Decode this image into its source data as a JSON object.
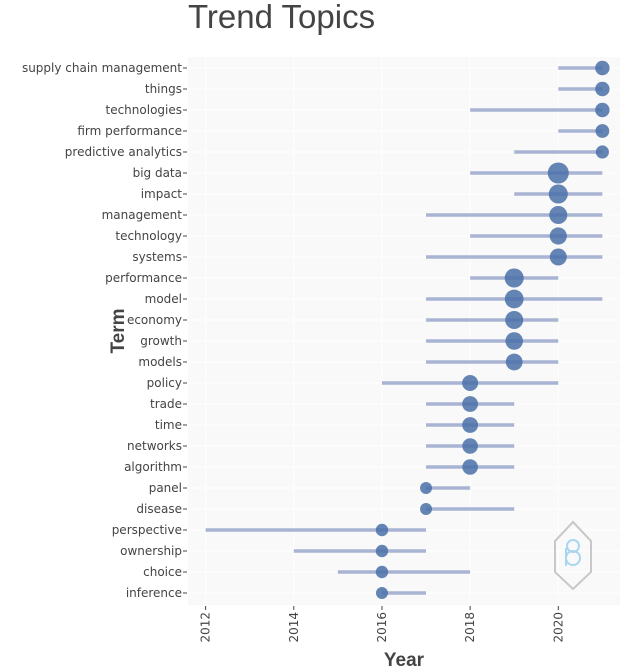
{
  "chart_data": {
    "type": "scatter",
    "title": "Trend Topics",
    "xlabel": "Year",
    "ylabel": "Term",
    "xlim": [
      2011.6,
      2021.4
    ],
    "xticks": [
      2012,
      2014,
      2016,
      2018,
      2020
    ],
    "grid": true,
    "legend": "none",
    "colors": {
      "point": "#4a70a8",
      "range": "#a9b4d4",
      "plot_bg": "#f9f9f9",
      "grid": "#ffffff",
      "text": "#444444"
    },
    "terms": [
      {
        "term": "supply chain management",
        "start": 2020,
        "end": 2021,
        "median": 2021,
        "size": 1
      },
      {
        "term": "things",
        "start": 2020,
        "end": 2021,
        "median": 2021,
        "size": 1
      },
      {
        "term": "technologies",
        "start": 2018,
        "end": 2021,
        "median": 2021,
        "size": 1
      },
      {
        "term": "firm performance",
        "start": 2020,
        "end": 2021,
        "median": 2021,
        "size": 0.8
      },
      {
        "term": "predictive analytics",
        "start": 2019,
        "end": 2021,
        "median": 2021,
        "size": 0.6
      },
      {
        "term": "big data",
        "start": 2018,
        "end": 2021,
        "median": 2020,
        "size": 5
      },
      {
        "term": "impact",
        "start": 2019,
        "end": 2021,
        "median": 2020,
        "size": 3.5
      },
      {
        "term": "management",
        "start": 2017,
        "end": 2021,
        "median": 2020,
        "size": 2.8
      },
      {
        "term": "technology",
        "start": 2018,
        "end": 2021,
        "median": 2020,
        "size": 2.3
      },
      {
        "term": "systems",
        "start": 2017,
        "end": 2021,
        "median": 2020,
        "size": 2.2
      },
      {
        "term": "performance",
        "start": 2018,
        "end": 2020,
        "median": 2019,
        "size": 3.5
      },
      {
        "term": "model",
        "start": 2017,
        "end": 2021,
        "median": 2019,
        "size": 3.3
      },
      {
        "term": "economy",
        "start": 2017,
        "end": 2020,
        "median": 2019,
        "size": 2.8
      },
      {
        "term": "growth",
        "start": 2017,
        "end": 2020,
        "median": 2019,
        "size": 2.5
      },
      {
        "term": "models",
        "start": 2017,
        "end": 2020,
        "median": 2019,
        "size": 2.1
      },
      {
        "term": "policy",
        "start": 2016,
        "end": 2020,
        "median": 2018,
        "size": 1.7
      },
      {
        "term": "trade",
        "start": 2017,
        "end": 2019,
        "median": 2018,
        "size": 1.6
      },
      {
        "term": "time",
        "start": 2017,
        "end": 2019,
        "median": 2018,
        "size": 1.6
      },
      {
        "term": "networks",
        "start": 2017,
        "end": 2019,
        "median": 2018,
        "size": 1.5
      },
      {
        "term": "algorithm",
        "start": 2017,
        "end": 2019,
        "median": 2018,
        "size": 1.5
      },
      {
        "term": "panel",
        "start": 2017,
        "end": 2018,
        "median": 2017,
        "size": 0.3
      },
      {
        "term": "disease",
        "start": 2017,
        "end": 2019,
        "median": 2017,
        "size": 0.3
      },
      {
        "term": "perspective",
        "start": 2012,
        "end": 2017,
        "median": 2016,
        "size": 0.4
      },
      {
        "term": "ownership",
        "start": 2014,
        "end": 2017,
        "median": 2016,
        "size": 0.4
      },
      {
        "term": "choice",
        "start": 2015,
        "end": 2018,
        "median": 2016,
        "size": 0.4
      },
      {
        "term": "inference",
        "start": 2016,
        "end": 2017,
        "median": 2016,
        "size": 0.3
      }
    ]
  }
}
